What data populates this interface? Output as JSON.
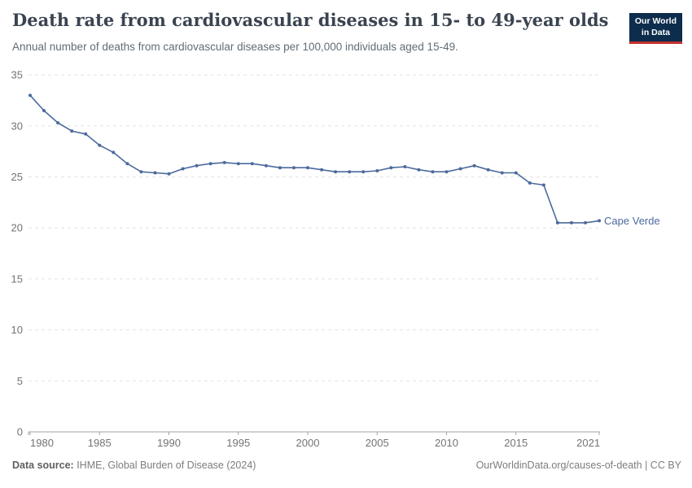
{
  "header": {
    "title": "Death rate from cardiovascular diseases in 15- to 49-year olds",
    "subtitle": "Annual number of deaths from cardiovascular diseases per 100,000 individuals aged 15-49.",
    "logo": {
      "line1": "Our World",
      "line2": "in Data"
    }
  },
  "chart_data": {
    "type": "line",
    "title": "Death rate from cardiovascular diseases in 15- to 49-year olds",
    "subtitle": "Annual number of deaths from cardiovascular diseases per 100,000 individuals aged 15-49.",
    "xlabel": "",
    "ylabel": "",
    "xlim": [
      1980,
      2021
    ],
    "ylim": [
      0,
      35
    ],
    "x_ticks": [
      1980,
      1985,
      1990,
      1995,
      2000,
      2005,
      2010,
      2015,
      2021
    ],
    "y_ticks": [
      0,
      5,
      10,
      15,
      20,
      25,
      30,
      35
    ],
    "grid": "horizontal-dashed",
    "legend_position": "end-of-line-label",
    "series": [
      {
        "name": "Cape Verde",
        "color": "#4C6A9C",
        "x": [
          1980,
          1981,
          1982,
          1983,
          1984,
          1985,
          1986,
          1987,
          1988,
          1989,
          1990,
          1991,
          1992,
          1993,
          1994,
          1995,
          1996,
          1997,
          1998,
          1999,
          2000,
          2001,
          2002,
          2003,
          2004,
          2005,
          2006,
          2007,
          2008,
          2009,
          2010,
          2011,
          2012,
          2013,
          2014,
          2015,
          2016,
          2017,
          2018,
          2019,
          2020,
          2021
        ],
        "values": [
          33.0,
          31.5,
          30.3,
          29.5,
          29.2,
          28.1,
          27.4,
          26.3,
          25.5,
          25.4,
          25.3,
          25.8,
          26.1,
          26.3,
          26.4,
          26.3,
          26.3,
          26.1,
          25.9,
          25.9,
          25.9,
          25.7,
          25.5,
          25.5,
          25.5,
          25.6,
          25.9,
          26.0,
          25.7,
          25.5,
          25.5,
          25.8,
          26.1,
          25.7,
          25.4,
          25.4,
          24.4,
          24.2,
          20.5,
          20.5,
          20.5,
          20.7
        ]
      }
    ]
  },
  "footer": {
    "source_label": "Data source:",
    "source_text": " IHME, Global Burden of Disease (2024)",
    "credit": "OurWorldinData.org/causes-of-death | CC BY"
  },
  "colors": {
    "line": "#4C6A9C",
    "title": "#3a4450",
    "subtitle": "#616c76",
    "grid": "#e3e3e3",
    "axis": "#a3a3a3",
    "tick_label": "#737373",
    "logo_bg": "#0d2d4d",
    "logo_red": "#c5312d",
    "footer_text": "#7d7d7d"
  }
}
